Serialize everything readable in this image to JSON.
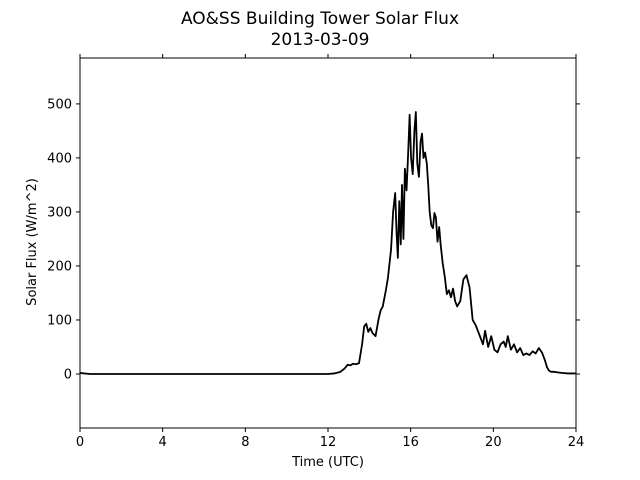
{
  "chart_data": {
    "type": "line",
    "title": "AO&SS Building Tower Solar Flux",
    "subtitle": "2013-03-09",
    "xlabel": "Time (UTC)",
    "ylabel": "Solar Flux (W/m^2)",
    "xlim": [
      0,
      24
    ],
    "ylim": [
      -100,
      585
    ],
    "xticks": [
      0,
      4,
      8,
      12,
      16,
      20,
      24
    ],
    "yticks": [
      0,
      100,
      200,
      300,
      400,
      500
    ],
    "grid": false,
    "line_color": "#000000",
    "series": [
      {
        "x": [
          0,
          0.2,
          0.5,
          1,
          2,
          4,
          6,
          8,
          10,
          11,
          12,
          12.3,
          12.6,
          12.8,
          12.95,
          13.1,
          13.2,
          13.35,
          13.5,
          13.65,
          13.75,
          13.85,
          13.95,
          14.05,
          14.15,
          14.3,
          14.45,
          14.55,
          14.65,
          14.8,
          14.9,
          15.05,
          15.15,
          15.25,
          15.32,
          15.38,
          15.45,
          15.52,
          15.58,
          15.65,
          15.72,
          15.8,
          15.88,
          15.95,
          16.02,
          16.1,
          16.18,
          16.25,
          16.32,
          16.4,
          16.48,
          16.55,
          16.62,
          16.7,
          16.78,
          16.85,
          16.92,
          17.0,
          17.08,
          17.15,
          17.22,
          17.3,
          17.38,
          17.45,
          17.55,
          17.65,
          17.75,
          17.85,
          17.95,
          18.05,
          18.15,
          18.25,
          18.4,
          18.55,
          18.7,
          18.85,
          19.0,
          19.15,
          19.3,
          19.4,
          19.5,
          19.6,
          19.75,
          19.9,
          20.05,
          20.2,
          20.35,
          20.5,
          20.6,
          20.7,
          20.85,
          21.0,
          21.15,
          21.3,
          21.45,
          21.6,
          21.75,
          21.9,
          22.05,
          22.2,
          22.35,
          22.5,
          22.6,
          22.7,
          22.8,
          22.95,
          23.1,
          23.3,
          23.6,
          24
        ],
        "y": [
          2,
          1,
          0,
          0,
          0,
          0,
          0,
          0,
          0,
          0,
          0,
          1,
          4,
          10,
          17,
          16,
          19,
          18,
          20,
          55,
          88,
          93,
          78,
          85,
          76,
          70,
          102,
          118,
          125,
          155,
          178,
          230,
          300,
          335,
          260,
          215,
          320,
          240,
          350,
          250,
          380,
          340,
          410,
          480,
          400,
          370,
          450,
          485,
          390,
          365,
          430,
          445,
          400,
          410,
          390,
          350,
          300,
          275,
          270,
          298,
          290,
          245,
          272,
          240,
          205,
          180,
          148,
          155,
          142,
          158,
          135,
          125,
          135,
          175,
          183,
          160,
          100,
          90,
          75,
          65,
          55,
          80,
          50,
          70,
          45,
          40,
          55,
          60,
          50,
          70,
          45,
          55,
          40,
          48,
          35,
          38,
          35,
          42,
          38,
          48,
          40,
          25,
          12,
          6,
          4,
          4,
          3,
          2,
          1,
          1
        ]
      }
    ]
  }
}
